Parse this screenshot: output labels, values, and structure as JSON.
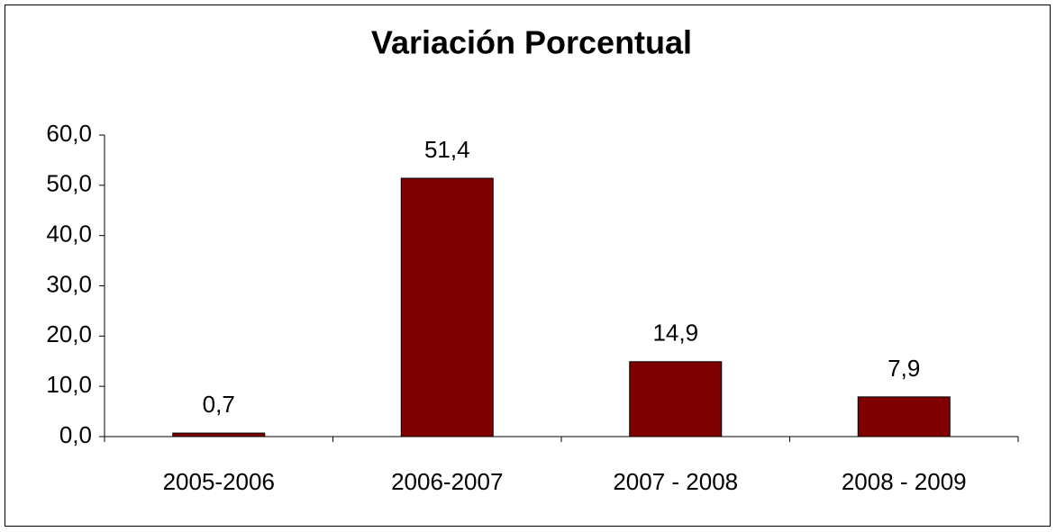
{
  "chart_data": {
    "type": "bar",
    "title": "Variación Porcentual",
    "categories": [
      "2005-2006",
      "2006-2007",
      "2007 - 2008",
      "2008 - 2009"
    ],
    "values": [
      0.7,
      51.4,
      14.9,
      7.9
    ],
    "value_labels": [
      "0,7",
      "51,4",
      "14,9",
      "7,9"
    ],
    "color": "#800000",
    "ylim": [
      0,
      60
    ],
    "yticks": [
      {
        "value": 0,
        "label": "0,0"
      },
      {
        "value": 10,
        "label": "10,0"
      },
      {
        "value": 20,
        "label": "20,0"
      },
      {
        "value": 30,
        "label": "30,0"
      },
      {
        "value": 40,
        "label": "40,0"
      },
      {
        "value": 50,
        "label": "50,0"
      },
      {
        "value": 60,
        "label": "60,0"
      }
    ],
    "grid": false
  }
}
